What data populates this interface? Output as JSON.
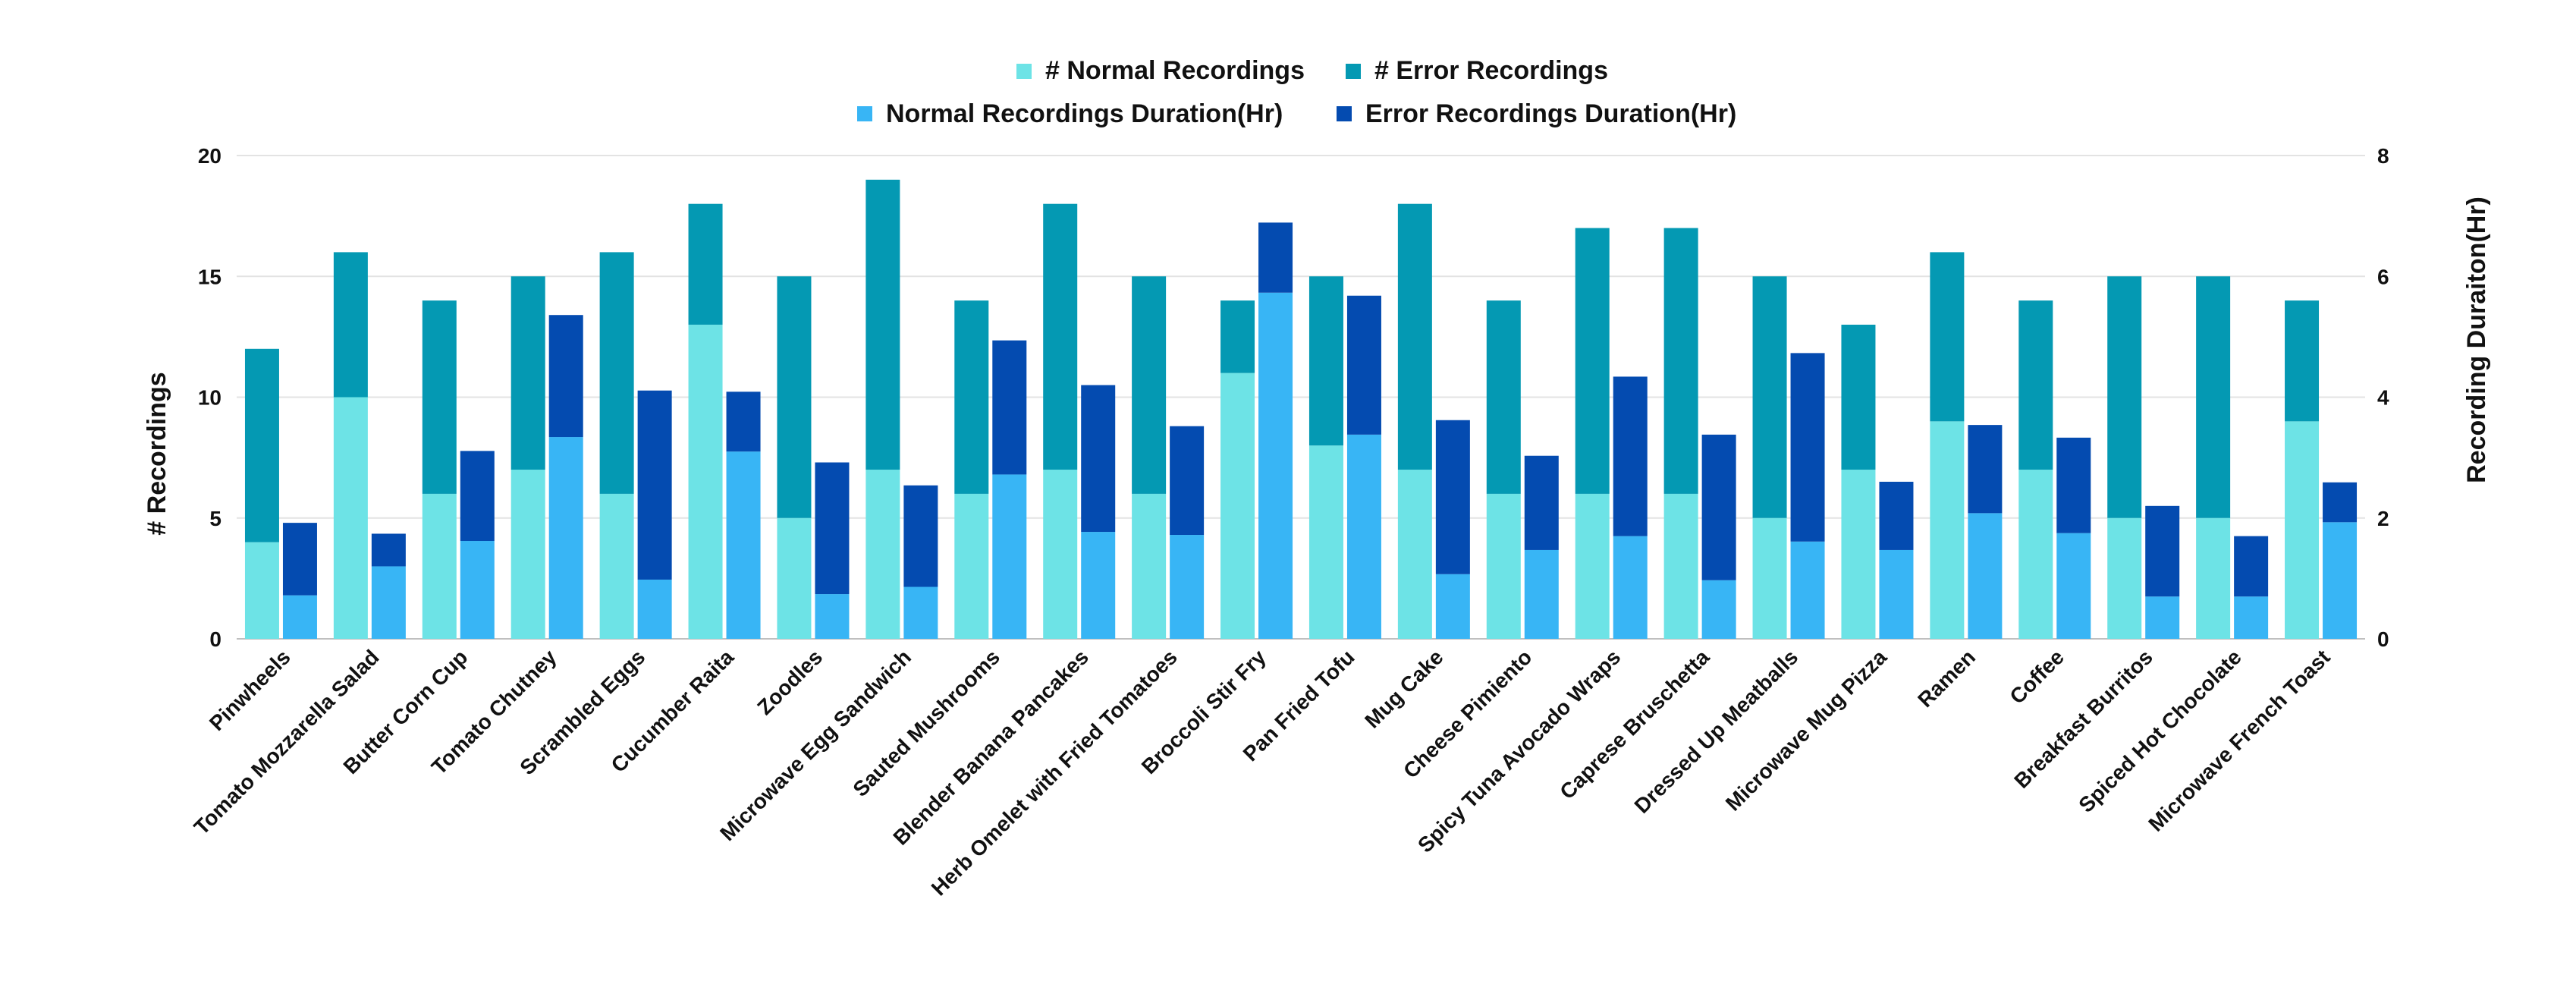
{
  "chart_data": {
    "type": "bar",
    "title": "",
    "categories": [
      "Pinwheels",
      "Tomato Mozzarella Salad",
      "Butter Corn Cup",
      "Tomato Chutney",
      "Scrambled Eggs",
      "Cucumber Raita",
      "Zoodles",
      "Microwave Egg Sandwich",
      "Sauted Mushrooms",
      "Blender Banana Pancakes",
      "Herb Omelet with Fried Tomatoes",
      "Broccoli Stir Fry",
      "Pan Fried Tofu",
      "Mug Cake",
      "Cheese Pimiento",
      "Spicy Tuna Avocado Wraps",
      "Caprese Bruschetta",
      "Dressed Up Meatballs",
      "Microwave Mug Pizza",
      "Ramen",
      "Coffee",
      "Breakfast Burritos",
      "Spiced Hot Chocolate",
      "Microwave French Toast"
    ],
    "series": [
      {
        "name": "# Normal Recordings",
        "axis": "left",
        "stack": "count",
        "color": "#6de3e6",
        "values": [
          4,
          10,
          6,
          7,
          6,
          13,
          5,
          7,
          6,
          7,
          6,
          11,
          8,
          7,
          6,
          6,
          6,
          5,
          7,
          9,
          7,
          5,
          5,
          9
        ]
      },
      {
        "name": "# Error Recordings",
        "axis": "left",
        "stack": "count",
        "color": "#0499b3",
        "values": [
          8,
          6,
          8,
          8,
          10,
          5,
          10,
          12,
          8,
          11,
          9,
          3,
          7,
          11,
          8,
          11,
          11,
          10,
          6,
          7,
          7,
          10,
          10,
          5
        ]
      },
      {
        "name": "Normal Recordings Duration(Hr)",
        "axis": "right",
        "stack": "duration",
        "color": "#38b5f5",
        "values": [
          0.72,
          1.2,
          1.62,
          3.34,
          0.98,
          3.1,
          0.74,
          0.86,
          2.72,
          1.77,
          1.72,
          5.73,
          3.38,
          1.07,
          1.47,
          1.7,
          0.97,
          1.61,
          1.47,
          2.08,
          1.75,
          0.7,
          0.7,
          1.93
        ]
      },
      {
        "name": "Error Recordings Duration(Hr)",
        "axis": "right",
        "stack": "duration",
        "color": "#044bb0",
        "values": [
          1.2,
          0.54,
          1.49,
          2.02,
          3.13,
          0.99,
          2.18,
          1.68,
          2.22,
          2.43,
          1.8,
          1.16,
          2.3,
          2.55,
          1.56,
          2.64,
          2.41,
          3.12,
          1.13,
          1.46,
          1.58,
          1.5,
          1.0,
          0.66
        ]
      }
    ],
    "left_axis": {
      "label": "# Recordings",
      "min": 0,
      "max": 20,
      "ticks": [
        "0",
        "5",
        "10",
        "15",
        "20"
      ]
    },
    "right_axis": {
      "label": "Recording Duraiton(Hr)",
      "min": 0,
      "max": 8,
      "ticks": [
        "0",
        "2",
        "4",
        "6",
        "8"
      ]
    },
    "grid": true,
    "legend_position": "top"
  }
}
